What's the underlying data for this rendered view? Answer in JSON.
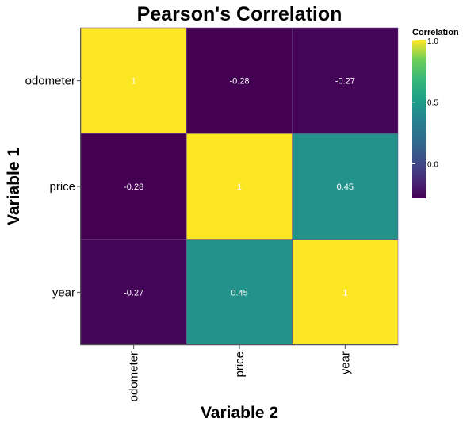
{
  "chart_data": {
    "type": "heatmap",
    "title": "Pearson's Correlation",
    "xlabel": "Variable 2",
    "ylabel": "Variable 1",
    "x_categories": [
      "odometer",
      "price",
      "year"
    ],
    "y_categories": [
      "odometer",
      "price",
      "year"
    ],
    "values": [
      [
        1,
        -0.28,
        -0.27
      ],
      [
        -0.28,
        1,
        0.45
      ],
      [
        -0.27,
        0.45,
        1
      ]
    ],
    "value_labels": [
      [
        "1",
        "-0.28",
        "-0.27"
      ],
      [
        "-0.28",
        "1",
        "0.45"
      ],
      [
        "-0.27",
        "0.45",
        "1"
      ]
    ],
    "color_scale": "viridis",
    "legend": {
      "title": "Correlation",
      "placement": "top-right",
      "ticks": [
        {
          "value": 1.0,
          "label": "1.0"
        },
        {
          "value": 0.5,
          "label": "0.5"
        },
        {
          "value": 0.0,
          "label": "0.0"
        }
      ],
      "range": [
        -0.28,
        1.0
      ]
    },
    "grid": false
  }
}
